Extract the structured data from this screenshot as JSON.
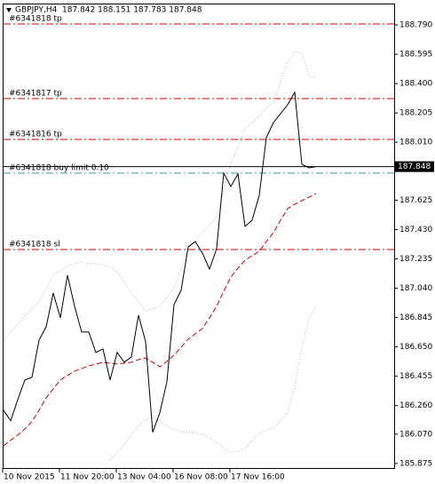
{
  "chart_data": {
    "type": "line",
    "title": "GBPJPY,H4  187.842 188.151 187.783 187.848",
    "categories": [
      "10 Nov 2015",
      null,
      null,
      null,
      null,
      null,
      null,
      null,
      "11 Nov 20:00",
      null,
      null,
      null,
      null,
      null,
      null,
      null,
      "13 Nov 04:00",
      null,
      null,
      null,
      null,
      null,
      null,
      null,
      "16 Nov 08:00",
      null,
      null,
      null,
      null,
      null,
      null,
      null,
      "17 Nov 16:00",
      null,
      null,
      null,
      null,
      null,
      null,
      null,
      null,
      null,
      null,
      null,
      null
    ],
    "series": [
      {
        "color": "#000000",
        "style": "solid",
        "values": [
          186.229,
          186.159,
          186.3,
          186.43,
          186.448,
          186.695,
          186.784,
          187.008,
          186.843,
          187.126,
          186.92,
          186.749,
          186.749,
          186.613,
          186.636,
          186.43,
          186.613,
          186.548,
          186.583,
          186.861,
          186.684,
          186.082,
          186.212,
          186.418,
          186.931,
          187.026,
          187.315,
          187.35,
          187.274,
          187.167,
          187.303,
          187.805,
          187.716,
          187.799,
          187.451,
          187.492,
          187.657,
          188.041,
          188.141,
          188.2,
          188.259,
          188.342,
          187.864,
          187.84,
          187.848
        ]
      },
      {
        "color": "#cc0000",
        "style": "dashed",
        "values": [
          185.993,
          186.029,
          186.064,
          186.105,
          186.153,
          186.229,
          186.312,
          186.371,
          186.43,
          186.459,
          186.489,
          186.507,
          186.524,
          186.536,
          186.548,
          186.542,
          186.536,
          186.542,
          186.548,
          186.566,
          186.577,
          186.548,
          186.518,
          186.554,
          186.595,
          186.648,
          186.701,
          186.737,
          186.772,
          186.843,
          186.92,
          187.02,
          187.114,
          187.173,
          187.226,
          187.256,
          187.285,
          187.35,
          187.409,
          187.492,
          187.569,
          187.598,
          187.622,
          187.645,
          187.669
        ]
      },
      {
        "color": "#b4b4b4",
        "style": "dotted",
        "values": [
          186.695,
          186.749,
          186.802,
          186.855,
          186.902,
          186.949,
          187.038,
          187.126,
          187.156,
          187.185,
          187.203,
          187.215,
          187.203,
          187.203,
          187.197,
          187.179,
          187.156,
          187.079,
          187.008,
          186.949,
          186.89,
          186.902,
          186.92,
          186.979,
          187.038,
          187.167,
          187.303,
          187.356,
          187.409,
          187.457,
          187.51,
          187.687,
          187.864,
          187.982,
          188.1,
          188.141,
          188.188,
          188.235,
          188.277,
          188.412,
          188.542,
          188.613,
          188.601,
          188.454,
          188.436
        ]
      },
      {
        "color": "#b4b4b4",
        "style": "dotted",
        "values": [
          null,
          null,
          null,
          null,
          null,
          null,
          null,
          null,
          null,
          null,
          null,
          null,
          null,
          null,
          null,
          185.899,
          185.952,
          186.005,
          186.064,
          186.123,
          186.164,
          186.182,
          186.159,
          186.123,
          186.1,
          186.088,
          186.082,
          186.076,
          186.07,
          186.046,
          186.017,
          185.976,
          185.946,
          185.958,
          185.976,
          186.029,
          186.076,
          186.094,
          186.111,
          186.159,
          186.212,
          186.389,
          186.654,
          186.831,
          186.92
        ]
      }
    ],
    "levels": [
      {
        "label": "#6341818 tp",
        "value": 188.796,
        "color": "#cc0000"
      },
      {
        "label": "#6341817 tp",
        "value": 188.3,
        "color": "#cc0000"
      },
      {
        "label": "#6341816 tp",
        "value": 188.029,
        "color": "#cc0000"
      },
      {
        "label": "#6341818 buy limit 0.10",
        "value": 187.805,
        "color": "#2e9a9a"
      },
      {
        "label": "#6341818 sl",
        "value": 187.297,
        "color": "#cc0000"
      }
    ],
    "last": 187.848,
    "ylim": [
      185.845,
      188.926
    ],
    "yticks": [
      {
        "value": 188.79,
        "label": "188.790"
      },
      188.595,
      {
        "value": 188.4,
        "label": "188.400"
      },
      188.205,
      {
        "value": 188.01,
        "label": "188.010"
      },
      187.625,
      {
        "value": 187.43,
        "label": "187.430"
      },
      187.235,
      {
        "value": 187.04,
        "label": "187.040"
      },
      186.845,
      {
        "value": 186.65,
        "label": "186.650"
      },
      186.455,
      {
        "value": 186.26,
        "label": "186.260"
      },
      {
        "value": 186.07,
        "label": "186.070"
      },
      185.875
    ]
  }
}
